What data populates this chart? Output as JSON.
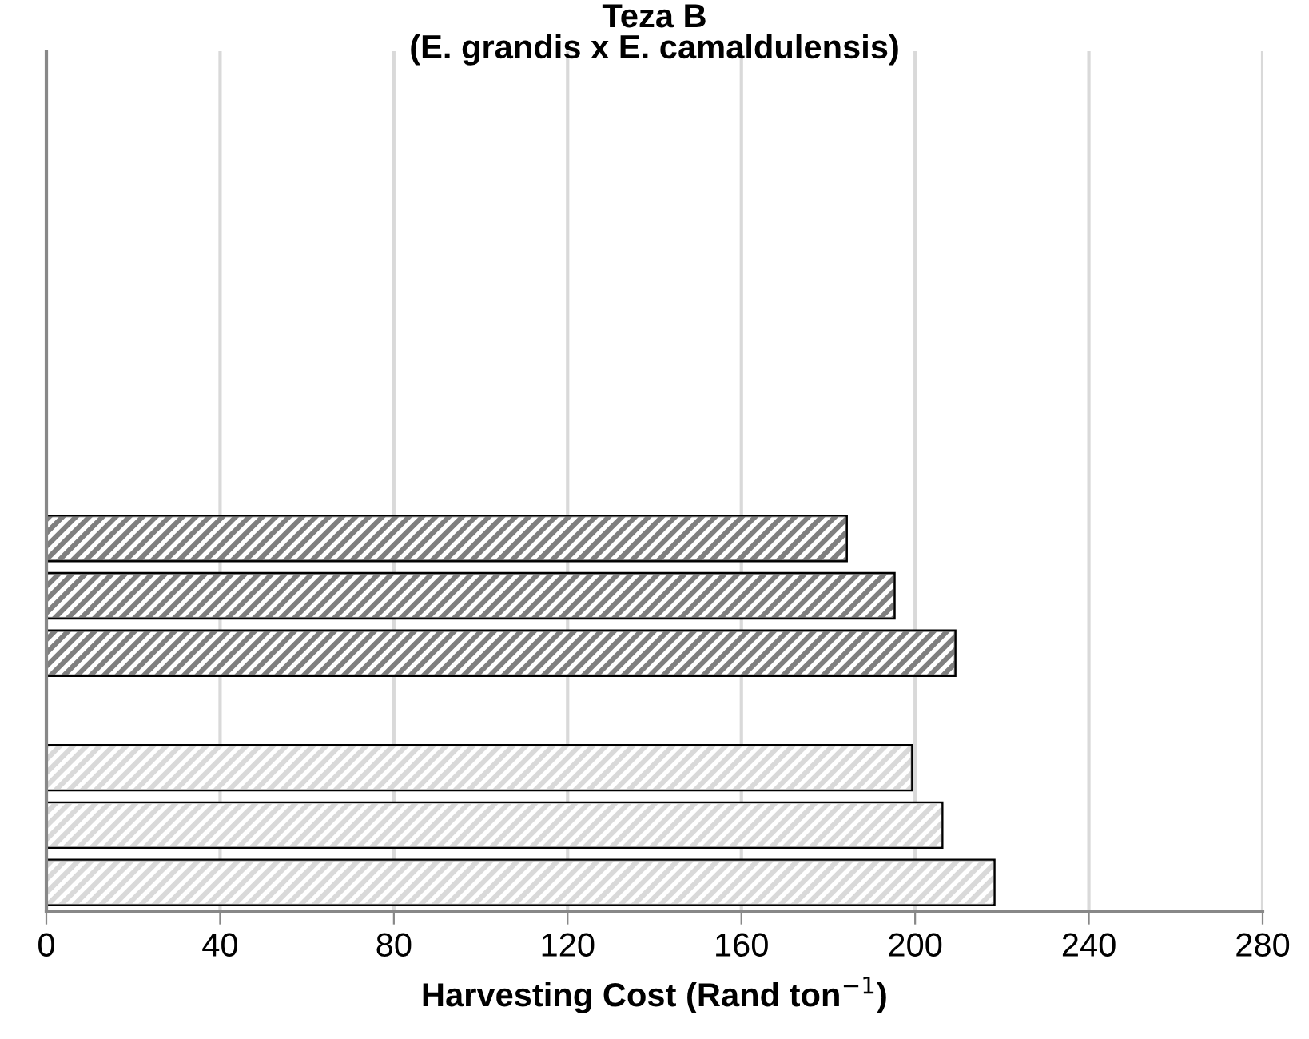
{
  "chart_data": {
    "type": "bar",
    "orientation": "horizontal",
    "title": "Teza B\n(E. grandis x E. camaldulensis)",
    "xlabel": "Harvesting Cost (Rand ton$^{−1}$)",
    "categories": [
      null,
      null,
      null,
      null,
      null,
      null,
      null,
      null,
      null,
      null,
      null,
      null,
      null,
      null,
      null
    ],
    "values": [
      null,
      null,
      null,
      null,
      null,
      null,
      null,
      null,
      184,
      195,
      209,
      null,
      199,
      206,
      218
    ],
    "colors": [
      null,
      null,
      null,
      null,
      null,
      null,
      null,
      null,
      "#7f7f7f",
      "#7f7f7f",
      "#7f7f7f",
      null,
      "#d9d9d9",
      "#d9d9d9",
      "#d9d9d9"
    ],
    "xlim": [
      0,
      280
    ],
    "xticks": [
      0,
      40,
      80,
      120,
      160,
      200,
      240,
      280
    ],
    "grid": "x"
  }
}
